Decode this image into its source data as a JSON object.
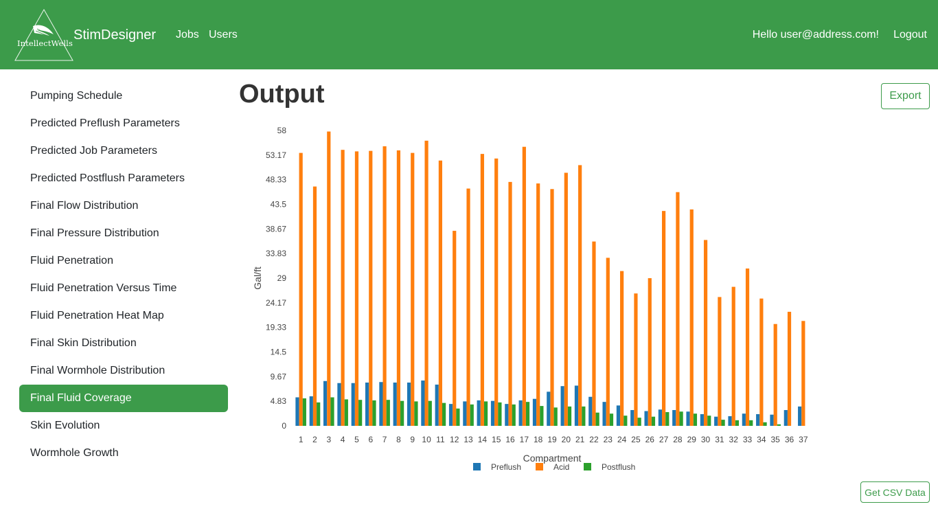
{
  "header": {
    "logo_text": "IntellectWells",
    "brand": "StimDesigner",
    "nav": [
      "Jobs",
      "Users"
    ],
    "greeting": "Hello user@address.com!",
    "logout": "Logout"
  },
  "sidebar": {
    "items": [
      {
        "label": "Pumping Schedule",
        "active": false
      },
      {
        "label": "Predicted Preflush Parameters",
        "active": false
      },
      {
        "label": "Predicted Job Parameters",
        "active": false
      },
      {
        "label": "Predicted Postflush Parameters",
        "active": false
      },
      {
        "label": "Final Flow Distribution",
        "active": false
      },
      {
        "label": "Final Pressure Distribution",
        "active": false
      },
      {
        "label": "Fluid Penetration",
        "active": false
      },
      {
        "label": "Fluid Penetration Versus Time",
        "active": false
      },
      {
        "label": "Fluid Penetration Heat Map",
        "active": false
      },
      {
        "label": "Final Skin Distribution",
        "active": false
      },
      {
        "label": "Final Wormhole Distribution",
        "active": false
      },
      {
        "label": "Final Fluid Coverage",
        "active": true
      },
      {
        "label": "Skin Evolution",
        "active": false
      },
      {
        "label": "Wormhole Growth",
        "active": false
      }
    ]
  },
  "main": {
    "title": "Output",
    "export_label": "Export",
    "csv_label": "Get CSV Data"
  },
  "colors": {
    "brand_green": "#3c9b4a",
    "preflush": "#1f77b4",
    "acid": "#ff7f0e",
    "postflush": "#2ca02c"
  },
  "chart_data": {
    "type": "bar",
    "xlabel": "Compartment",
    "ylabel": "Gal/ft",
    "ylim": [
      0,
      58
    ],
    "yticks": [
      "0",
      "4.83",
      "9.67",
      "14.5",
      "19.33",
      "24.17",
      "29",
      "33.83",
      "38.67",
      "43.5",
      "48.33",
      "53.17",
      "58"
    ],
    "categories": [
      "1",
      "2",
      "3",
      "4",
      "5",
      "6",
      "7",
      "8",
      "9",
      "10",
      "11",
      "12",
      "13",
      "14",
      "15",
      "16",
      "17",
      "18",
      "19",
      "20",
      "21",
      "22",
      "23",
      "24",
      "25",
      "26",
      "27",
      "28",
      "29",
      "30",
      "31",
      "32",
      "33",
      "34",
      "35",
      "36",
      "37"
    ],
    "legend_position": "bottom",
    "series": [
      {
        "name": "Preflush",
        "color": "#1f77b4",
        "values": [
          5.6,
          5.8,
          8.8,
          8.4,
          8.4,
          8.5,
          8.6,
          8.5,
          8.5,
          8.9,
          8.1,
          4.3,
          4.8,
          5.0,
          4.9,
          4.3,
          5.0,
          5.3,
          6.7,
          7.8,
          7.9,
          5.7,
          4.7,
          4.0,
          3.1,
          2.9,
          3.2,
          3.1,
          2.8,
          2.3,
          1.8,
          1.9,
          2.4,
          2.3,
          2.2,
          3.1,
          3.8
        ]
      },
      {
        "name": "Acid",
        "color": "#ff7f0e",
        "values": [
          53.6,
          47.0,
          57.8,
          54.2,
          53.9,
          54.0,
          54.9,
          54.1,
          53.6,
          56.0,
          52.1,
          38.3,
          46.6,
          53.4,
          52.5,
          47.9,
          54.8,
          47.6,
          46.5,
          49.7,
          51.2,
          36.2,
          33.0,
          30.4,
          26.0,
          29.0,
          42.2,
          45.9,
          42.5,
          36.5,
          25.3,
          27.3,
          30.9,
          25.0,
          20.0,
          22.4,
          20.6
        ]
      },
      {
        "name": "Postflush",
        "color": "#2ca02c",
        "values": [
          5.4,
          4.6,
          5.6,
          5.2,
          5.1,
          5.0,
          5.1,
          4.9,
          4.8,
          4.9,
          4.5,
          3.4,
          4.2,
          4.8,
          4.6,
          4.2,
          4.7,
          3.9,
          3.6,
          3.8,
          3.8,
          2.6,
          2.4,
          2.0,
          1.6,
          1.8,
          2.7,
          2.8,
          2.4,
          2.0,
          1.2,
          1.1,
          1.1,
          0.7,
          0.3,
          0,
          0
        ]
      }
    ]
  }
}
